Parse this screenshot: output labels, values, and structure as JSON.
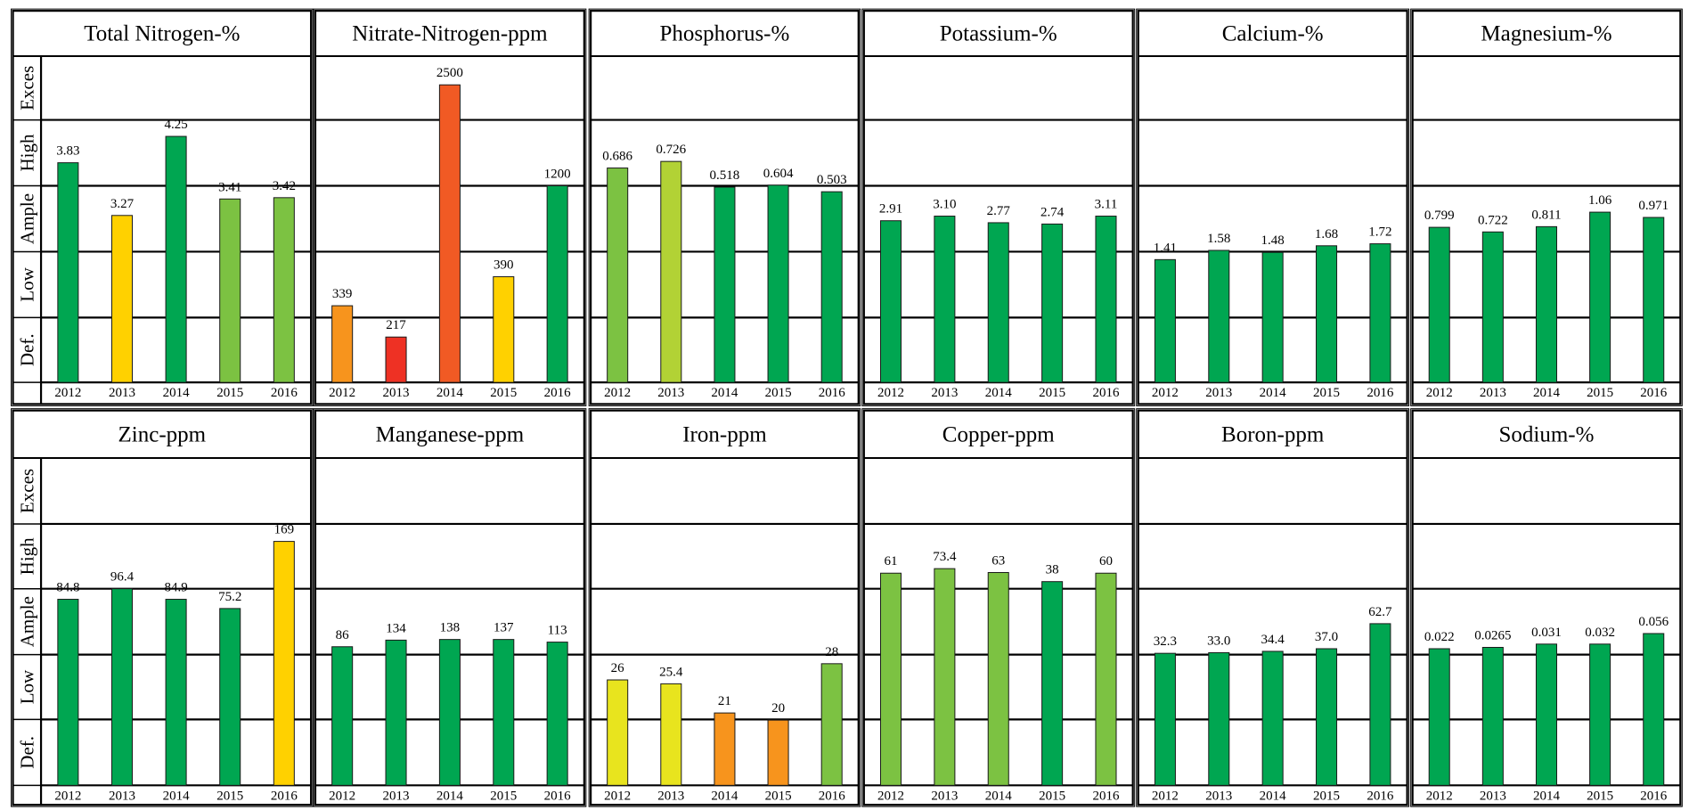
{
  "chart_data": {
    "type": "bar",
    "layout_rows": 2,
    "zone_labels": [
      "Exces",
      "High",
      "Ample",
      "Low",
      "Def."
    ],
    "categories": [
      "2012",
      "2013",
      "2014",
      "2015",
      "2016"
    ],
    "colors": {
      "dark_green": "#00a651",
      "light_green": "#7cc242",
      "yellow_green": "#b2d235",
      "yellow": "#ffd100",
      "lemon": "#e8e41e",
      "orange": "#f7941d",
      "red_orange": "#f15a24",
      "red": "#ee3124"
    },
    "panels": [
      {
        "title": "Total Nitrogen-%",
        "labels": [
          "3.83",
          "3.27",
          "4.25",
          "3.41",
          "3.42"
        ],
        "levels": [
          3.35,
          2.55,
          3.75,
          2.8,
          2.82
        ],
        "colors": [
          "dark_green",
          "yellow",
          "dark_green",
          "light_green",
          "light_green"
        ]
      },
      {
        "title": "Nitrate-Nitrogen-ppm",
        "labels": [
          "339",
          "217",
          "2500",
          "390",
          "1200"
        ],
        "levels": [
          1.18,
          0.7,
          4.55,
          1.62,
          3.0
        ],
        "colors": [
          "orange",
          "red",
          "red_orange",
          "yellow",
          "dark_green"
        ]
      },
      {
        "title": "Phosphorus-%",
        "labels": [
          "0.686",
          "0.726",
          "0.518",
          "0.604",
          "0.503"
        ],
        "levels": [
          3.27,
          3.37,
          2.98,
          3.01,
          2.91
        ],
        "colors": [
          "light_green",
          "yellow_green",
          "dark_green",
          "dark_green",
          "dark_green"
        ]
      },
      {
        "title": "Potassium-%",
        "labels": [
          "2.91",
          "3.10",
          "2.77",
          "2.74",
          "3.11"
        ],
        "levels": [
          2.47,
          2.54,
          2.44,
          2.42,
          2.54
        ],
        "colors": [
          "dark_green",
          "dark_green",
          "dark_green",
          "dark_green",
          "dark_green"
        ]
      },
      {
        "title": "Calcium-%",
        "labels": [
          "1.41",
          "1.58",
          "1.48",
          "1.68",
          "1.72"
        ],
        "levels": [
          1.88,
          2.02,
          1.99,
          2.09,
          2.12
        ],
        "colors": [
          "dark_green",
          "dark_green",
          "dark_green",
          "dark_green",
          "dark_green"
        ]
      },
      {
        "title": "Magnesium-%",
        "labels": [
          "0.799",
          "0.722",
          "0.811",
          "1.06",
          "0.971"
        ],
        "levels": [
          2.37,
          2.3,
          2.38,
          2.6,
          2.52
        ],
        "colors": [
          "dark_green",
          "dark_green",
          "dark_green",
          "dark_green",
          "dark_green"
        ]
      },
      {
        "title": "Zinc-ppm",
        "labels": [
          "84.8",
          "96.4",
          "84.9",
          "75.2",
          "169"
        ],
        "levels": [
          2.84,
          3.0,
          2.84,
          2.7,
          3.73
        ],
        "colors": [
          "dark_green",
          "dark_green",
          "dark_green",
          "dark_green",
          "yellow"
        ]
      },
      {
        "title": "Manganese-ppm",
        "labels": [
          "86",
          "134",
          "138",
          "137",
          "113"
        ],
        "levels": [
          2.12,
          2.22,
          2.23,
          2.23,
          2.19
        ],
        "colors": [
          "dark_green",
          "dark_green",
          "dark_green",
          "dark_green",
          "dark_green"
        ]
      },
      {
        "title": "Iron-ppm",
        "labels": [
          "26",
          "25.4",
          "21",
          "20",
          "28"
        ],
        "levels": [
          1.61,
          1.55,
          1.1,
          0.99,
          1.86
        ],
        "colors": [
          "lemon",
          "lemon",
          "orange",
          "orange",
          "light_green"
        ]
      },
      {
        "title": "Copper-ppm",
        "labels": [
          "61",
          "73.4",
          "63",
          "38",
          "60"
        ],
        "levels": [
          3.24,
          3.31,
          3.25,
          3.11,
          3.24
        ],
        "colors": [
          "light_green",
          "light_green",
          "light_green",
          "dark_green",
          "light_green"
        ]
      },
      {
        "title": "Boron-ppm",
        "labels": [
          "32.3",
          "33.0",
          "34.4",
          "37.0",
          "62.7"
        ],
        "levels": [
          2.02,
          2.03,
          2.05,
          2.09,
          2.47
        ],
        "colors": [
          "dark_green",
          "dark_green",
          "dark_green",
          "dark_green",
          "dark_green"
        ]
      },
      {
        "title": "Sodium-%",
        "labels": [
          "0.022",
          "0.0265",
          "0.031",
          "0.032",
          "0.056"
        ],
        "levels": [
          2.09,
          2.11,
          2.16,
          2.16,
          2.32
        ],
        "colors": [
          "dark_green",
          "dark_green",
          "dark_green",
          "dark_green",
          "dark_green"
        ]
      }
    ]
  }
}
